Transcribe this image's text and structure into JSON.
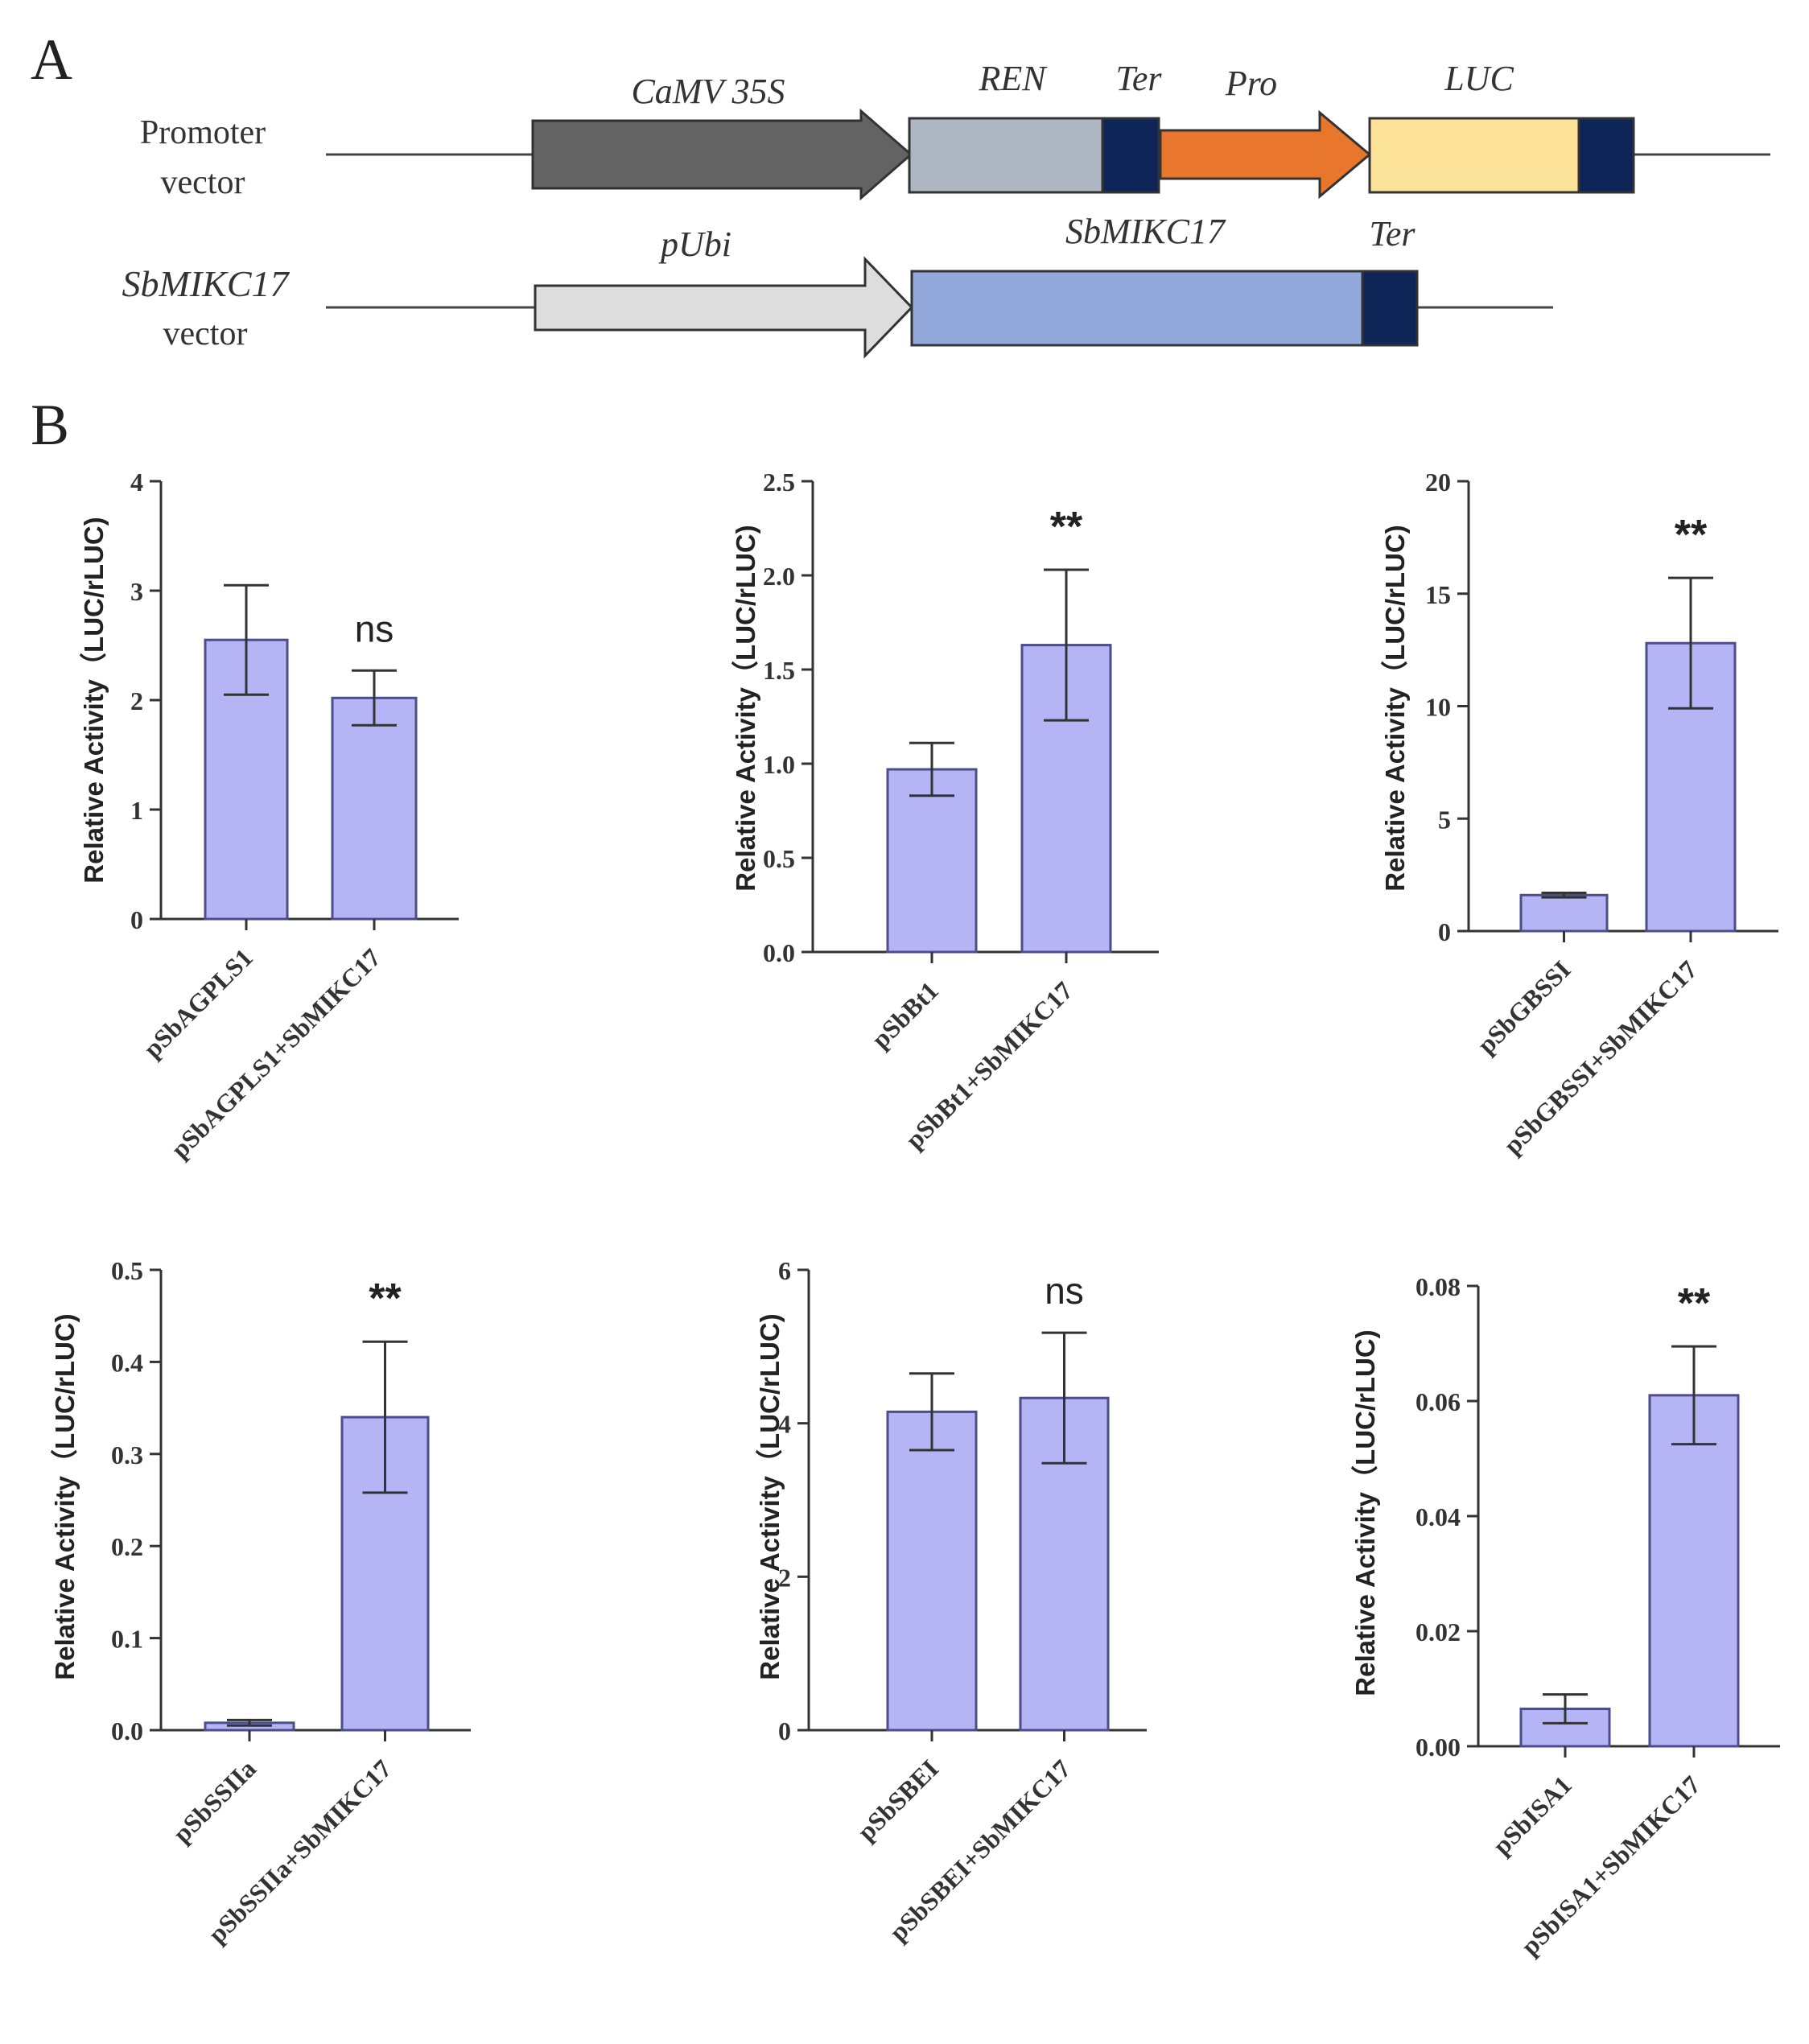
{
  "panel_a": {
    "letter": "A",
    "promoter_vector": {
      "name_line1": "Promoter",
      "name_line2": "vector",
      "labels": {
        "promoter": "CaMV 35S",
        "ren": "REN",
        "ter": "Ter",
        "pro": "Pro",
        "luc": "LUC"
      },
      "colors": {
        "promoter": "#636363",
        "ren": "#aeb6c2",
        "ter": "#0e2558",
        "pro": "#e8772d",
        "luc": "#fde39a"
      }
    },
    "effector_vector": {
      "name_line1": "SbMIKC17",
      "name_line2": "vector",
      "labels": {
        "promoter": "pUbi",
        "gene": "SbMIKC17",
        "ter": "Ter"
      },
      "colors": {
        "promoter": "#dddddd",
        "gene": "#93a9dc",
        "ter": "#0e2558"
      }
    }
  },
  "panel_b": {
    "letter": "B",
    "bar_color": "#b5b5f5",
    "bar_edge_color": "#4d4d8c"
  },
  "chart_data": [
    {
      "type": "bar",
      "ylabel": "Relative Activity（LUC/rLUC)",
      "ylim": [
        0,
        4
      ],
      "yticks": [
        "0",
        "1",
        "2",
        "3",
        "4"
      ],
      "categories": [
        "pSbAGPLS1",
        "pSbAGPLS1+SbMIKC17"
      ],
      "values": [
        2.55,
        2.02
      ],
      "errors": [
        0.5,
        0.25
      ],
      "significance": "ns"
    },
    {
      "type": "bar",
      "ylabel": "Relative Activity（LUC/rLUC)",
      "ylim": [
        0,
        2.5
      ],
      "yticks": [
        "0.0",
        "0.5",
        "1.0",
        "1.5",
        "2.0",
        "2.5"
      ],
      "categories": [
        "pSbBt1",
        "pSbBt1+SbMIKC17"
      ],
      "values": [
        0.97,
        1.63
      ],
      "errors": [
        0.14,
        0.4
      ],
      "significance": "**"
    },
    {
      "type": "bar",
      "ylabel": "Relative Activity（LUC/rLUC)",
      "ylim": [
        0,
        20
      ],
      "yticks": [
        "0",
        "5",
        "10",
        "15",
        "20"
      ],
      "categories": [
        "pSbGBSSI",
        "pSbGBSSI+SbMIKC17"
      ],
      "values": [
        1.6,
        12.8
      ],
      "errors": [
        0.1,
        2.9
      ],
      "significance": "**"
    },
    {
      "type": "bar",
      "ylabel": "Relative Activity（LUC/rLUC)",
      "ylim": [
        0,
        0.5
      ],
      "yticks": [
        "0.0",
        "0.1",
        "0.2",
        "0.3",
        "0.4",
        "0.5"
      ],
      "categories": [
        "pSbSSIIa",
        "pSbSSIIa+SbMIKC17"
      ],
      "values": [
        0.008,
        0.34
      ],
      "errors": [
        0.003,
        0.082
      ],
      "significance": "**"
    },
    {
      "type": "bar",
      "ylabel": "Relative Activity（LUC/rLUC)",
      "ylim": [
        0,
        6
      ],
      "yticks": [
        "0",
        "2",
        "4",
        "6"
      ],
      "categories": [
        "pSbSBEI",
        "pSbSBEI+SbMIKC17"
      ],
      "values": [
        4.15,
        4.33
      ],
      "errors": [
        0.5,
        0.85
      ],
      "significance": "ns"
    },
    {
      "type": "bar",
      "ylabel": "Relative Activity（LUC/rLUC)",
      "ylim": [
        0,
        0.08
      ],
      "yticks": [
        "0.00",
        "0.02",
        "0.04",
        "0.06",
        "0.08"
      ],
      "categories": [
        "pSbISA1",
        "pSbISA1+SbMIKC17"
      ],
      "values": [
        0.0065,
        0.061
      ],
      "errors": [
        0.0025,
        0.0085
      ],
      "significance": "**"
    }
  ]
}
